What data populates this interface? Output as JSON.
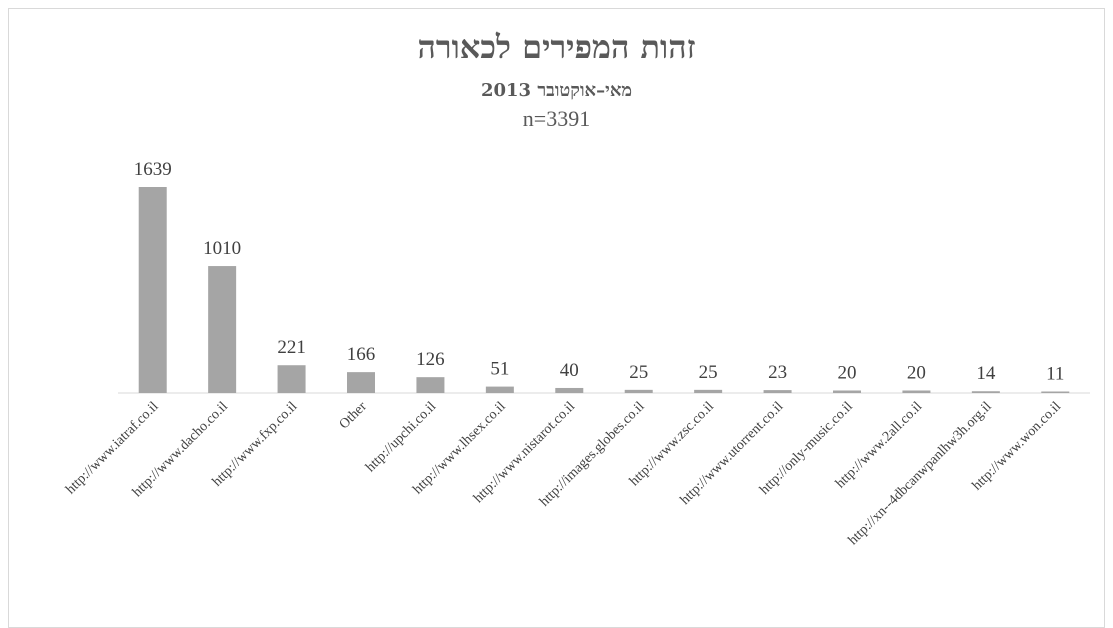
{
  "chart_data": {
    "type": "bar",
    "title": "זהות המפירים לכאורה",
    "subtitle": "מאי–אוקטובר 2013",
    "note": "n=3391",
    "categories": [
      "http://www.iatraf.co.il",
      "http://www.dacho.co.il",
      "http://www.fxp.co.il",
      "Other",
      "http://upchi.co.il",
      "http://www.lhsex.co.il",
      "http://www.nistarot.co.il",
      "http://images.globes.co.il",
      "http://www.zsc.co.il",
      "http://www.utorrent.co.il",
      "http://only-music.co.il",
      "http://www.2all.co.il",
      "http://xn--4dbcanwpanlhw3h.org.il",
      "http://www.won.co.il"
    ],
    "values": [
      1639,
      1010,
      221,
      166,
      126,
      51,
      40,
      25,
      25,
      23,
      20,
      20,
      14,
      11
    ],
    "data_labels": [
      "1639",
      "1010",
      "221",
      "166",
      "126",
      "51",
      "40",
      "25",
      "25",
      "23",
      "20",
      "20",
      "14",
      "11"
    ],
    "ylim": [
      0,
      1800
    ],
    "grid": false,
    "legend": "none",
    "bar_color": "#a5a5a5",
    "axis_color": "#d9d9d9"
  }
}
